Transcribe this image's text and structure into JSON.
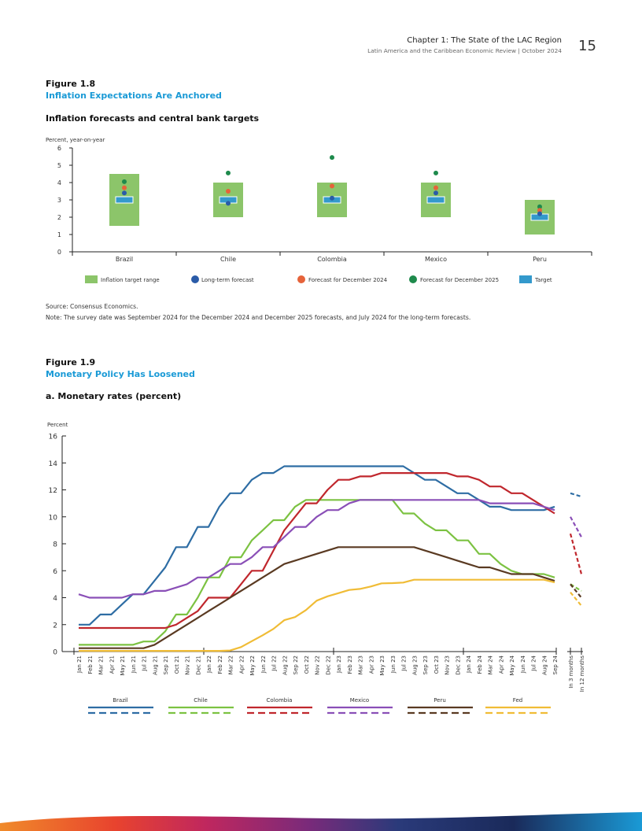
{
  "header": {
    "chapter": "Chapter 1: The State of the LAC Region",
    "subtitle": "Latin America and the Caribbean Economic Review | October 2024",
    "page_number": "15"
  },
  "figure18": {
    "label": "Figure 1.8",
    "title": "Inflation Expectations Are Anchored",
    "chart_title": "Inflation forecasts and central bank targets",
    "source": "Source: Consensus Economics.",
    "note": "Note: The survey date was September 2024 for the December 2024 and December 2025 forecasts, and July 2024 for the long-term forecasts."
  },
  "figure19": {
    "label": "Figure 1.9",
    "title": "Monetary Policy Has Loosened",
    "chart_title": "a. Monetary rates (percent)"
  },
  "colors": {
    "brazil": "#2e6da4",
    "chile": "#7cc242",
    "colombia": "#c0272d",
    "mexico": "#8a4fb7",
    "peru": "#5a3a22",
    "fed": "#f0bc36",
    "range": "#8cc56a",
    "target": "#3399cc",
    "longterm": "#2a5ba8",
    "dec24": "#e6633a",
    "dec25": "#1e8a4c",
    "accent": "#1a9ad6"
  },
  "chart_data": [
    {
      "type": "range_dot",
      "ylabel": "Percent, year-on-year",
      "ylim": [
        0,
        6
      ],
      "yticks": [
        0,
        1,
        2,
        3,
        4,
        5,
        6
      ],
      "categories": [
        "Brazil",
        "Chile",
        "Colombia",
        "Mexico",
        "Peru"
      ],
      "range_low": [
        1.5,
        2,
        2,
        2,
        1
      ],
      "range_high": [
        4.5,
        4,
        4,
        4,
        3
      ],
      "target": [
        3,
        3,
        3,
        3,
        2
      ],
      "long_term_forecast": [
        3.4,
        2.8,
        3.1,
        3.4,
        2.2
      ],
      "forecast_dec_2024": [
        3.7,
        3.5,
        3.8,
        3.7,
        2.4
      ],
      "forecast_dec_2025": [
        4.05,
        4.55,
        5.45,
        4.55,
        2.6
      ],
      "legend": [
        "Inflation target range",
        "Long-term forecast",
        "Forecast for December 2024",
        "Forecast for December 2025",
        "Target"
      ]
    },
    {
      "type": "line",
      "ylabel": "Percent",
      "ylim": [
        0,
        16
      ],
      "yticks": [
        0,
        2,
        4,
        6,
        8,
        10,
        12,
        14,
        16
      ],
      "x": [
        "Jan 21",
        "Feb 21",
        "Mar 21",
        "Apr 21",
        "May 21",
        "Jun 21",
        "Jul 21",
        "Aug 21",
        "Sep 21",
        "Oct 21",
        "Nov 21",
        "Dec 21",
        "Jan 22",
        "Feb 22",
        "Mar 22",
        "Apr 22",
        "May 22",
        "Jun 22",
        "Jul 22",
        "Aug 22",
        "Sep 22",
        "Oct 22",
        "Nov 22",
        "Dec 22",
        "Jan 23",
        "Feb 23",
        "Mar 23",
        "Apr 23",
        "May 23",
        "Jun 23",
        "Jul 23",
        "Aug 23",
        "Sep 23",
        "Oct 23",
        "Nov 23",
        "Dec 23",
        "Jan 24",
        "Feb 24",
        "Mar 24",
        "Apr 24",
        "May 24",
        "Jun 24",
        "Jul 24",
        "Aug 24",
        "Sep 24"
      ],
      "forecast_x": [
        "In 3 months",
        "In 12 months"
      ],
      "series": [
        {
          "name": "Brazil",
          "color": "#2e6da4",
          "values": [
            2,
            2,
            2.75,
            2.75,
            3.5,
            4.25,
            4.25,
            5.25,
            6.25,
            7.75,
            7.75,
            9.25,
            9.25,
            10.75,
            11.75,
            11.75,
            12.75,
            13.25,
            13.25,
            13.75,
            13.75,
            13.75,
            13.75,
            13.75,
            13.75,
            13.75,
            13.75,
            13.75,
            13.75,
            13.75,
            13.75,
            13.25,
            12.75,
            12.75,
            12.25,
            11.75,
            11.75,
            11.25,
            10.75,
            10.75,
            10.5,
            10.5,
            10.5,
            10.5,
            10.75
          ],
          "forecast": [
            11.75,
            11.5
          ]
        },
        {
          "name": "Chile",
          "color": "#7cc242",
          "values": [
            0.5,
            0.5,
            0.5,
            0.5,
            0.5,
            0.5,
            0.75,
            0.75,
            1.5,
            2.75,
            2.75,
            4,
            5.5,
            5.5,
            7,
            7,
            8.25,
            9,
            9.75,
            9.75,
            10.75,
            11.25,
            11.25,
            11.25,
            11.25,
            11.25,
            11.25,
            11.25,
            11.25,
            11.25,
            10.25,
            10.25,
            9.5,
            9,
            9,
            8.25,
            8.25,
            7.25,
            7.25,
            6.5,
            6,
            5.75,
            5.75,
            5.75,
            5.5
          ],
          "forecast": [
            5,
            4.5
          ]
        },
        {
          "name": "Colombia",
          "color": "#c0272d",
          "values": [
            1.75,
            1.75,
            1.75,
            1.75,
            1.75,
            1.75,
            1.75,
            1.75,
            1.75,
            2,
            2.5,
            3,
            4,
            4,
            4,
            5,
            6,
            6,
            7.5,
            9,
            10,
            11,
            11,
            12,
            12.75,
            12.75,
            13,
            13,
            13.25,
            13.25,
            13.25,
            13.25,
            13.25,
            13.25,
            13.25,
            13,
            13,
            12.75,
            12.25,
            12.25,
            11.75,
            11.75,
            11.25,
            10.75,
            10.25
          ],
          "forecast": [
            8.75,
            5.75
          ]
        },
        {
          "name": "Mexico",
          "color": "#8a4fb7",
          "values": [
            4.25,
            4,
            4,
            4,
            4,
            4.25,
            4.25,
            4.5,
            4.5,
            4.75,
            5,
            5.5,
            5.5,
            6,
            6.5,
            6.5,
            7,
            7.75,
            7.75,
            8.5,
            9.25,
            9.25,
            10,
            10.5,
            10.5,
            11,
            11.25,
            11.25,
            11.25,
            11.25,
            11.25,
            11.25,
            11.25,
            11.25,
            11.25,
            11.25,
            11.25,
            11.25,
            11,
            11,
            11,
            11,
            11,
            10.75,
            10.5
          ],
          "forecast": [
            10,
            8.5
          ]
        },
        {
          "name": "Peru",
          "color": "#5a3a22",
          "values": [
            0.25,
            0.25,
            0.25,
            0.25,
            0.25,
            0.25,
            0.25,
            0.5,
            1,
            1.5,
            2,
            2.5,
            3,
            3.5,
            4,
            4.5,
            5,
            5.5,
            6,
            6.5,
            6.75,
            7,
            7.25,
            7.5,
            7.75,
            7.75,
            7.75,
            7.75,
            7.75,
            7.75,
            7.75,
            7.75,
            7.5,
            7.25,
            7,
            6.75,
            6.5,
            6.25,
            6.25,
            6,
            5.75,
            5.75,
            5.75,
            5.5,
            5.25
          ],
          "forecast": [
            5,
            4
          ]
        },
        {
          "name": "Fed",
          "color": "#f0bc36",
          "values": [
            0.05,
            0.05,
            0.05,
            0.05,
            0.05,
            0.05,
            0.05,
            0.05,
            0.05,
            0.05,
            0.05,
            0.05,
            0.05,
            0.05,
            0.08,
            0.33,
            0.77,
            1.21,
            1.68,
            2.33,
            2.56,
            3.08,
            3.78,
            4.1,
            4.33,
            4.57,
            4.65,
            4.83,
            5.06,
            5.08,
            5.12,
            5.33,
            5.33,
            5.33,
            5.33,
            5.33,
            5.33,
            5.33,
            5.33,
            5.33,
            5.33,
            5.33,
            5.33,
            5.33,
            5.13
          ],
          "forecast": [
            4.4,
            3.4
          ]
        }
      ]
    }
  ]
}
